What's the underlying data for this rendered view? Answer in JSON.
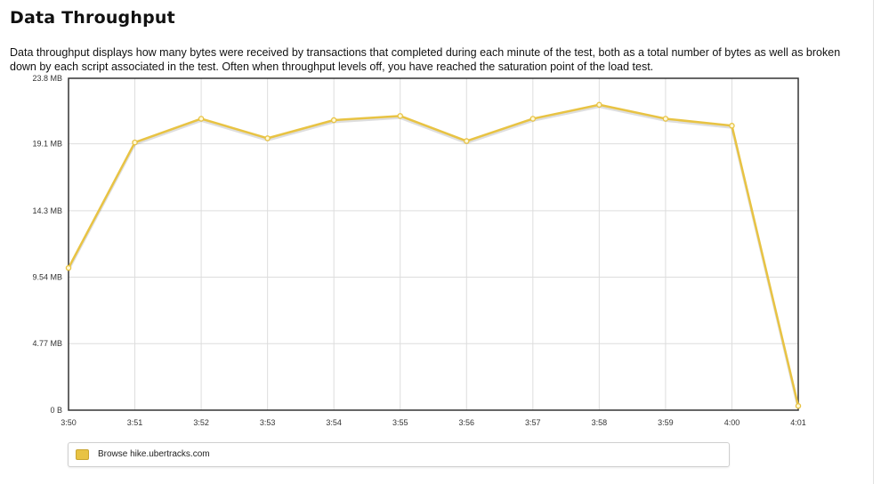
{
  "page": {
    "title": "Data Throughput",
    "description": "Data throughput displays how many bytes were received by transactions that completed during each minute of the test, both as a total number of bytes as well as broken down by each script associated in the test. Often when throughput levels off, you have reached the saturation point of the load test."
  },
  "colors": {
    "series": "#e8c343",
    "grid": "#dddddd",
    "frame": "#333333"
  },
  "chart_data": {
    "type": "line",
    "title": "",
    "xlabel": "",
    "ylabel": "",
    "grid": true,
    "legend_position": "bottom",
    "categories": [
      "3:50",
      "3:51",
      "3:52",
      "3:53",
      "3:54",
      "3:55",
      "3:56",
      "3:57",
      "3:58",
      "3:59",
      "4:00",
      "4:01"
    ],
    "y_unit": "MB",
    "ylim": [
      0,
      23.8
    ],
    "y_ticks": [
      {
        "value": 0,
        "label": "0 B"
      },
      {
        "value": 4.77,
        "label": "4.77 MB"
      },
      {
        "value": 9.54,
        "label": "9.54 MB"
      },
      {
        "value": 14.3,
        "label": "14.3 MB"
      },
      {
        "value": 19.1,
        "label": "19.1 MB"
      },
      {
        "value": 23.8,
        "label": "23.8 MB"
      }
    ],
    "series": [
      {
        "name": "Browse hike.ubertracks.com",
        "values": [
          10.2,
          19.2,
          20.9,
          19.5,
          20.8,
          21.1,
          19.3,
          20.9,
          21.9,
          20.9,
          20.4,
          0.3
        ]
      }
    ]
  }
}
